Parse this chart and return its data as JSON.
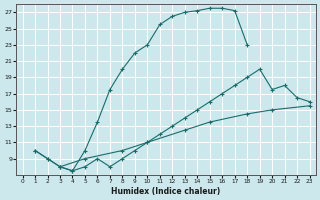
{
  "xlabel": "Humidex (Indice chaleur)",
  "bg_color": "#cce8ec",
  "grid_color": "#ffffff",
  "line_color": "#1a6b6b",
  "xlim": [
    -0.5,
    23.5
  ],
  "ylim": [
    7,
    28
  ],
  "xticks": [
    0,
    1,
    2,
    3,
    4,
    5,
    6,
    7,
    8,
    9,
    10,
    11,
    12,
    13,
    14,
    15,
    16,
    17,
    18,
    19,
    20,
    21,
    22,
    23
  ],
  "yticks": [
    9,
    11,
    13,
    15,
    17,
    19,
    21,
    23,
    25,
    27
  ],
  "line1_x": [
    1,
    2,
    3,
    4,
    5,
    6,
    7,
    8,
    9,
    10,
    11,
    12,
    13,
    14,
    15,
    16,
    17,
    18
  ],
  "line1_y": [
    10,
    9,
    8,
    7.5,
    10,
    13.5,
    17.5,
    20,
    22,
    23,
    25.5,
    26.5,
    27,
    27.2,
    27.5,
    27.5,
    27.2,
    23
  ],
  "line2_x": [
    1,
    2,
    3,
    4,
    5,
    6,
    7,
    8,
    9,
    10,
    11,
    12,
    13,
    14,
    15,
    16,
    17,
    18,
    19,
    20,
    21,
    22,
    23
  ],
  "line2_y": [
    10,
    9,
    8,
    7.5,
    8,
    9,
    8,
    9,
    10,
    11,
    12,
    13,
    14,
    15,
    16,
    17,
    18,
    19,
    20,
    17.5,
    18,
    16.5,
    16
  ],
  "line3_x": [
    3,
    5,
    8,
    10,
    13,
    15,
    18,
    20,
    23
  ],
  "line3_y": [
    8,
    9,
    10,
    11,
    12.5,
    13.5,
    14.5,
    15,
    15.5
  ]
}
